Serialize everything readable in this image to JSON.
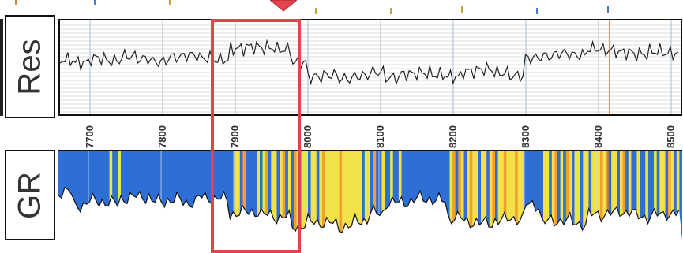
{
  "tracks": {
    "resistivity": {
      "label": "Res"
    },
    "gamma_ray": {
      "label": "GR"
    }
  },
  "depth_axis": {
    "ticks": [
      "7700",
      "7800",
      "7900",
      "8000",
      "8100",
      "8200",
      "8300",
      "8400",
      "8500"
    ]
  },
  "colors": {
    "highlight": "#e2444c",
    "gr_shale": "#2e6fd6",
    "gr_sand": "#f2e24a",
    "gr_mixed": "#f0a030",
    "marker_line": "#c87a3a"
  },
  "chart_data": [
    {
      "type": "line",
      "series": [
        {
          "values": [
            58,
            55,
            60,
            57,
            62,
            59,
            56,
            61,
            63,
            60,
            58,
            70,
            72,
            71,
            69,
            55,
            40,
            42,
            38,
            41,
            45,
            39,
            43,
            44,
            42,
            40,
            46,
            48,
            44,
            41,
            60,
            62,
            65,
            63,
            70,
            68,
            66,
            64,
            67,
            65
          ]
        }
      ]
    },
    {
      "type": "area",
      "series": [
        {
          "values": [
            85,
            70,
            75,
            72,
            78,
            80,
            74,
            76,
            73,
            79,
            77,
            60,
            62,
            58,
            55,
            45,
            50,
            48,
            44,
            52,
            60,
            72,
            74,
            78,
            75,
            55,
            50,
            48,
            52,
            54,
            70,
            50,
            52,
            48,
            58,
            60,
            62,
            56,
            58,
            60
          ]
        }
      ]
    }
  ]
}
